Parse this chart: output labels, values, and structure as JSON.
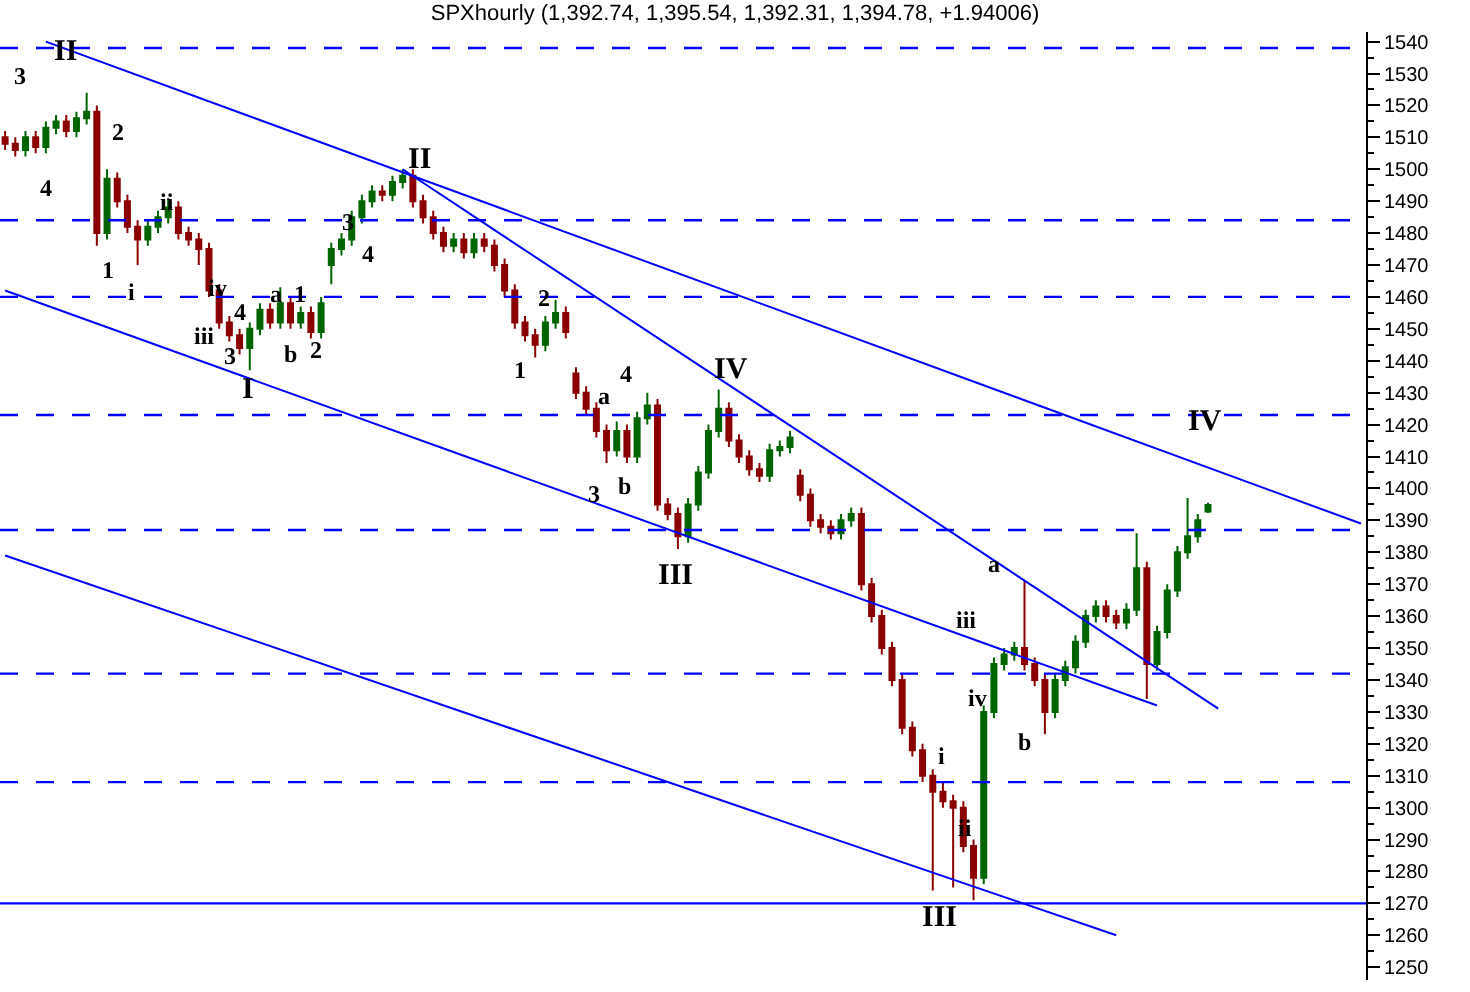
{
  "chart_data": {
    "type": "candlestick",
    "title": "SPXhourly (1,392.74, 1,395.54, 1,392.31, 1,394.78, +1.94006)",
    "categories": [
      null,
      null,
      null,
      null,
      null,
      null,
      null,
      null,
      null,
      null,
      null,
      null,
      null,
      null,
      null,
      null,
      null,
      null,
      null,
      null,
      null,
      null,
      null,
      null,
      null,
      null,
      null,
      null,
      null,
      null,
      null,
      null,
      null,
      null,
      null,
      null,
      null,
      null,
      null,
      null,
      null,
      null,
      null,
      null,
      null,
      null,
      null,
      null,
      null,
      null,
      null,
      null,
      null,
      null,
      null,
      null,
      null,
      null,
      null,
      null,
      null,
      null,
      null,
      null,
      null,
      null,
      null,
      null,
      null,
      null,
      null,
      null,
      null,
      null,
      null,
      null,
      null,
      null,
      null,
      null,
      null,
      null,
      null,
      null,
      null,
      null,
      null,
      null,
      null,
      null,
      null,
      null,
      null,
      null,
      null,
      null,
      null,
      null,
      null,
      null,
      null,
      null,
      null,
      null,
      null,
      null,
      null,
      null,
      null,
      null,
      null,
      null,
      null,
      null,
      null,
      null,
      null,
      null,
      null,
      null,
      null,
      null,
      null,
      null,
      null,
      null,
      null,
      null,
      null,
      null,
      null,
      null,
      null,
      null
    ],
    "ohlc": [
      [
        1510,
        1512,
        1506,
        1508
      ],
      [
        1508,
        1510,
        1504,
        1506
      ],
      [
        1506,
        1512,
        1504,
        1510
      ],
      [
        1510,
        1512,
        1505,
        1507
      ],
      [
        1507,
        1515,
        1505,
        1513
      ],
      [
        1513,
        1517,
        1511,
        1515
      ],
      [
        1515,
        1517,
        1510,
        1512
      ],
      [
        1512,
        1518,
        1510,
        1516
      ],
      [
        1516,
        1524,
        1514,
        1518
      ],
      [
        1518,
        1520,
        1476,
        1480
      ],
      [
        1480,
        1500,
        1478,
        1497
      ],
      [
        1497,
        1499,
        1488,
        1490
      ],
      [
        1490,
        1492,
        1480,
        1482
      ],
      [
        1482,
        1484,
        1470,
        1478
      ],
      [
        1478,
        1484,
        1476,
        1482
      ],
      [
        1482,
        1487,
        1480,
        1485
      ],
      [
        1485,
        1491,
        1483,
        1488
      ],
      [
        1488,
        1490,
        1478,
        1480
      ],
      [
        1480,
        1482,
        1476,
        1478
      ],
      [
        1478,
        1480,
        1470,
        1475
      ],
      [
        1475,
        1477,
        1460,
        1462
      ],
      [
        1462,
        1464,
        1450,
        1452
      ],
      [
        1452,
        1454,
        1446,
        1448
      ],
      [
        1448,
        1450,
        1442,
        1444
      ],
      [
        1444,
        1452,
        1437,
        1450
      ],
      [
        1450,
        1458,
        1448,
        1456
      ],
      [
        1456,
        1458,
        1450,
        1452
      ],
      [
        1452,
        1463,
        1450,
        1458
      ],
      [
        1458,
        1460,
        1450,
        1452
      ],
      [
        1452,
        1457,
        1450,
        1455
      ],
      [
        1455,
        1457,
        1447,
        1449
      ],
      [
        1449,
        1460,
        1447,
        1458
      ],
      [
        1470,
        1477,
        1464,
        1475
      ],
      [
        1475,
        1480,
        1473,
        1478
      ],
      [
        1478,
        1487,
        1476,
        1485
      ],
      [
        1485,
        1492,
        1483,
        1490
      ],
      [
        1490,
        1495,
        1488,
        1493
      ],
      [
        1493,
        1495,
        1490,
        1492
      ],
      [
        1492,
        1498,
        1490,
        1496
      ],
      [
        1496,
        1500,
        1494,
        1498
      ],
      [
        1498,
        1500,
        1488,
        1490
      ],
      [
        1490,
        1492,
        1483,
        1485
      ],
      [
        1485,
        1487,
        1478,
        1480
      ],
      [
        1480,
        1482,
        1474,
        1476
      ],
      [
        1476,
        1480,
        1474,
        1478
      ],
      [
        1478,
        1480,
        1472,
        1474
      ],
      [
        1474,
        1480,
        1472,
        1478
      ],
      [
        1478,
        1480,
        1474,
        1476
      ],
      [
        1476,
        1478,
        1468,
        1470
      ],
      [
        1470,
        1472,
        1460,
        1462
      ],
      [
        1462,
        1464,
        1450,
        1452
      ],
      [
        1452,
        1454,
        1446,
        1448
      ],
      [
        1448,
        1450,
        1441,
        1445
      ],
      [
        1445,
        1454,
        1443,
        1452
      ],
      [
        1452,
        1459,
        1450,
        1455
      ],
      [
        1455,
        1457,
        1447,
        1449
      ],
      [
        1436,
        1438,
        1428,
        1430
      ],
      [
        1430,
        1432,
        1423,
        1425
      ],
      [
        1425,
        1427,
        1416,
        1418
      ],
      [
        1418,
        1420,
        1408,
        1412
      ],
      [
        1412,
        1421,
        1410,
        1418
      ],
      [
        1418,
        1420,
        1408,
        1410
      ],
      [
        1410,
        1424,
        1408,
        1422
      ],
      [
        1422,
        1430,
        1420,
        1426
      ],
      [
        1426,
        1428,
        1393,
        1395
      ],
      [
        1395,
        1397,
        1390,
        1392
      ],
      [
        1392,
        1394,
        1381,
        1385
      ],
      [
        1385,
        1397,
        1383,
        1395
      ],
      [
        1395,
        1407,
        1393,
        1405
      ],
      [
        1405,
        1420,
        1403,
        1418
      ],
      [
        1418,
        1431,
        1416,
        1425
      ],
      [
        1425,
        1427,
        1413,
        1415
      ],
      [
        1415,
        1417,
        1408,
        1410
      ],
      [
        1410,
        1412,
        1404,
        1406
      ],
      [
        1406,
        1408,
        1402,
        1404
      ],
      [
        1404,
        1414,
        1402,
        1412
      ],
      [
        1412,
        1415,
        1410,
        1413
      ],
      [
        1413,
        1418,
        1411,
        1416
      ],
      [
        1404,
        1406,
        1396,
        1398
      ],
      [
        1398,
        1400,
        1388,
        1390
      ],
      [
        1390,
        1392,
        1386,
        1388
      ],
      [
        1388,
        1390,
        1384,
        1386
      ],
      [
        1386,
        1392,
        1384,
        1390
      ],
      [
        1390,
        1394,
        1388,
        1392
      ],
      [
        1392,
        1394,
        1368,
        1370
      ],
      [
        1370,
        1372,
        1358,
        1360
      ],
      [
        1360,
        1362,
        1348,
        1350
      ],
      [
        1350,
        1352,
        1338,
        1340
      ],
      [
        1340,
        1342,
        1323,
        1325
      ],
      [
        1325,
        1327,
        1316,
        1318
      ],
      [
        1318,
        1320,
        1308,
        1310
      ],
      [
        1310,
        1312,
        1274,
        1305
      ],
      [
        1305,
        1308,
        1300,
        1302
      ],
      [
        1302,
        1304,
        1275,
        1300
      ],
      [
        1300,
        1302,
        1286,
        1288
      ],
      [
        1288,
        1290,
        1271,
        1278
      ],
      [
        1278,
        1332,
        1276,
        1330
      ],
      [
        1330,
        1347,
        1328,
        1345
      ],
      [
        1345,
        1350,
        1343,
        1348
      ],
      [
        1348,
        1352,
        1346,
        1350
      ],
      [
        1350,
        1371,
        1343,
        1345
      ],
      [
        1345,
        1347,
        1338,
        1340
      ],
      [
        1340,
        1342,
        1323,
        1330
      ],
      [
        1330,
        1342,
        1328,
        1340
      ],
      [
        1340,
        1346,
        1338,
        1344
      ],
      [
        1344,
        1354,
        1342,
        1352
      ],
      [
        1352,
        1362,
        1350,
        1360
      ],
      [
        1360,
        1365,
        1358,
        1363
      ],
      [
        1363,
        1365,
        1358,
        1360
      ],
      [
        1360,
        1362,
        1356,
        1358
      ],
      [
        1358,
        1364,
        1356,
        1362
      ],
      [
        1362,
        1386,
        1360,
        1375
      ],
      [
        1375,
        1377,
        1334,
        1345
      ],
      [
        1345,
        1357,
        1343,
        1355
      ],
      [
        1355,
        1370,
        1353,
        1368
      ],
      [
        1368,
        1382,
        1366,
        1380
      ],
      [
        1380,
        1397,
        1378,
        1385
      ],
      [
        1385,
        1392,
        1383,
        1390
      ],
      [
        1392.74,
        1395.54,
        1392.31,
        1394.78
      ],
      null,
      null,
      null,
      null,
      null,
      null,
      null,
      null,
      null,
      null,
      null,
      null,
      null,
      null,
      null
    ],
    "colors": [
      "#8b0000",
      "#8b0000",
      "#006400",
      "#8b0000",
      "#006400",
      "#006400",
      "#8b0000",
      "#006400",
      "#006400",
      "#8b0000",
      "#006400",
      "#8b0000",
      "#8b0000",
      "#8b0000",
      "#006400",
      "#006400",
      "#006400",
      "#8b0000",
      "#8b0000",
      "#8b0000",
      "#8b0000",
      "#8b0000",
      "#8b0000",
      "#8b0000",
      "#006400",
      "#006400",
      "#8b0000",
      "#006400",
      "#8b0000",
      "#006400",
      "#8b0000",
      "#006400",
      "#006400",
      "#006400",
      "#006400",
      "#006400",
      "#006400",
      "#8b0000",
      "#006400",
      "#006400",
      "#8b0000",
      "#8b0000",
      "#8b0000",
      "#8b0000",
      "#006400",
      "#8b0000",
      "#006400",
      "#8b0000",
      "#8b0000",
      "#8b0000",
      "#8b0000",
      "#8b0000",
      "#8b0000",
      "#006400",
      "#006400",
      "#8b0000",
      "#8b0000",
      "#8b0000",
      "#8b0000",
      "#8b0000",
      "#006400",
      "#8b0000",
      "#006400",
      "#006400",
      "#8b0000",
      "#8b0000",
      "#8b0000",
      "#006400",
      "#006400",
      "#006400",
      "#006400",
      "#8b0000",
      "#8b0000",
      "#8b0000",
      "#8b0000",
      "#006400",
      "#006400",
      "#006400",
      "#8b0000",
      "#8b0000",
      "#8b0000",
      "#8b0000",
      "#006400",
      "#006400",
      "#8b0000",
      "#8b0000",
      "#8b0000",
      "#8b0000",
      "#8b0000",
      "#8b0000",
      "#8b0000",
      "#8b0000",
      "#8b0000",
      "#8b0000",
      "#8b0000",
      "#8b0000",
      "#006400",
      "#006400",
      "#006400",
      "#006400",
      "#8b0000",
      "#8b0000",
      "#8b0000",
      "#006400",
      "#006400",
      "#006400",
      "#006400",
      "#006400",
      "#8b0000",
      "#8b0000",
      "#006400",
      "#006400",
      "#8b0000",
      "#006400",
      "#006400",
      "#006400",
      "#006400",
      "#006400",
      "#006400",
      null,
      null,
      null,
      null,
      null,
      null,
      null,
      null,
      null,
      null,
      null,
      null,
      null,
      null,
      null
    ],
    "series": [
      {
        "type": "line",
        "color": "#0000ff",
        "values": [
          null,
          null,
          null,
          null,
          1540,
          null,
          null,
          null,
          null,
          null,
          null,
          null,
          null,
          null,
          null,
          null,
          null,
          null,
          null,
          null,
          null,
          null,
          null,
          null,
          null,
          null,
          null,
          null,
          null,
          null,
          null,
          null,
          null,
          null,
          null,
          null,
          null,
          null,
          null,
          null,
          null,
          null,
          null,
          null,
          null,
          null,
          null,
          null,
          null,
          null,
          null,
          null,
          null,
          null,
          null,
          null,
          null,
          null,
          null,
          null,
          null,
          null,
          null,
          null,
          null,
          null,
          null,
          null,
          null,
          null,
          null,
          null,
          null,
          null,
          null,
          null,
          null,
          null,
          null,
          null,
          null,
          null,
          null,
          null,
          null,
          null,
          null,
          null,
          null,
          null,
          null,
          null,
          null,
          null,
          null,
          null,
          null,
          null,
          null,
          null,
          null,
          null,
          null,
          null,
          null,
          null,
          null,
          null,
          null,
          null,
          null,
          null,
          null,
          null,
          null,
          null,
          null,
          null,
          null,
          null,
          null,
          null,
          null,
          null,
          null,
          null,
          null,
          null,
          null,
          null,
          null,
          null,
          null,
          1389
        ]
      },
      {
        "type": "line",
        "color": "#0000ff",
        "values": [
          null,
          null,
          null,
          null,
          null,
          null,
          null,
          null,
          null,
          null,
          null,
          null,
          null,
          null,
          null,
          null,
          null,
          null,
          null,
          null,
          null,
          null,
          null,
          null,
          null,
          null,
          null,
          null,
          null,
          null,
          null,
          null,
          null,
          null,
          null,
          null,
          null,
          null,
          null,
          1500,
          null,
          null,
          null,
          null,
          null,
          null,
          null,
          null,
          null,
          null,
          null,
          null,
          null,
          null,
          null,
          null,
          null,
          null,
          null,
          null,
          null,
          null,
          null,
          null,
          null,
          null,
          null,
          null,
          null,
          null,
          null,
          null,
          null,
          null,
          null,
          null,
          null,
          null,
          null,
          null,
          null,
          null,
          null,
          null,
          null,
          null,
          null,
          null,
          null,
          null,
          null,
          null,
          null,
          null,
          null,
          null,
          null,
          null,
          null,
          null,
          null,
          null,
          null,
          null,
          null,
          null,
          null,
          null,
          null,
          null,
          null,
          null,
          null,
          null,
          null,
          null,
          null,
          null,
          null,
          1331,
          null,
          null,
          null,
          null,
          null,
          null,
          null,
          null,
          null,
          null,
          null,
          null,
          null,
          null
        ]
      },
      {
        "type": "line",
        "color": "#0000ff",
        "values": [
          1462,
          null,
          null,
          null,
          null,
          null,
          null,
          null,
          null,
          null,
          null,
          null,
          null,
          null,
          null,
          null,
          null,
          null,
          null,
          null,
          null,
          null,
          null,
          null,
          null,
          null,
          null,
          null,
          null,
          null,
          null,
          null,
          null,
          null,
          null,
          null,
          null,
          null,
          null,
          null,
          null,
          null,
          null,
          null,
          null,
          null,
          null,
          null,
          null,
          null,
          null,
          null,
          null,
          null,
          null,
          null,
          null,
          null,
          null,
          null,
          null,
          null,
          null,
          null,
          null,
          null,
          null,
          null,
          null,
          null,
          null,
          null,
          null,
          null,
          null,
          null,
          null,
          null,
          null,
          null,
          null,
          null,
          null,
          null,
          null,
          null,
          null,
          null,
          null,
          null,
          null,
          null,
          null,
          null,
          null,
          null,
          null,
          null,
          null,
          null,
          null,
          null,
          null,
          null,
          null,
          null,
          null,
          null,
          null,
          null,
          null,
          null,
          null,
          1332,
          null,
          null,
          null,
          null,
          null,
          null,
          null,
          null,
          null,
          null,
          null,
          null,
          null,
          null,
          null,
          null,
          null,
          null,
          null,
          null
        ]
      },
      {
        "type": "line",
        "color": "#0000ff",
        "values": [
          1379,
          null,
          null,
          null,
          null,
          null,
          null,
          null,
          null,
          null,
          null,
          null,
          null,
          null,
          null,
          null,
          null,
          null,
          null,
          null,
          null,
          null,
          null,
          null,
          null,
          null,
          null,
          null,
          null,
          null,
          null,
          null,
          null,
          null,
          null,
          null,
          null,
          null,
          null,
          null,
          null,
          null,
          null,
          null,
          null,
          null,
          null,
          null,
          null,
          null,
          null,
          null,
          null,
          null,
          null,
          null,
          null,
          null,
          null,
          null,
          null,
          null,
          null,
          null,
          null,
          null,
          null,
          null,
          null,
          null,
          null,
          null,
          null,
          null,
          null,
          null,
          null,
          null,
          null,
          null,
          null,
          null,
          null,
          null,
          null,
          null,
          null,
          null,
          null,
          null,
          null,
          null,
          null,
          null,
          null,
          null,
          null,
          null,
          null,
          null,
          null,
          null,
          null,
          null,
          null,
          null,
          null,
          null,
          null,
          1260,
          null,
          null,
          null,
          null,
          null,
          null,
          null,
          null,
          null,
          null,
          null,
          null,
          null,
          null,
          null,
          null,
          null,
          null,
          null,
          null,
          null,
          null,
          null,
          null
        ]
      }
    ],
    "ref_lines": [
      {
        "axis": "y",
        "value": 1538,
        "color": "#0000ff",
        "line_style": "dashed"
      },
      {
        "axis": "y",
        "value": 1484,
        "color": "#0000ff",
        "line_style": "dashed"
      },
      {
        "axis": "y",
        "value": 1460,
        "color": "#0000ff",
        "line_style": "dashed"
      },
      {
        "axis": "y",
        "value": 1423,
        "color": "#0000ff",
        "line_style": "dashed"
      },
      {
        "axis": "y",
        "value": 1387,
        "color": "#0000ff",
        "line_style": "dashed"
      },
      {
        "axis": "y",
        "value": 1342,
        "color": "#0000ff",
        "line_style": "dashed"
      },
      {
        "axis": "y",
        "value": 1308,
        "color": "#0000ff",
        "line_style": "dashed"
      },
      {
        "axis": "y",
        "value": 1270,
        "color": "#0000ff",
        "line_style": "solid"
      }
    ],
    "annotations": [
      "II",
      "III",
      "IV",
      "II",
      "I",
      "III",
      "IV",
      "3",
      "4",
      "2",
      "1",
      "i",
      "ii",
      "iv",
      "iii",
      "4",
      "3",
      "a",
      "1",
      "b",
      "2",
      "3",
      "4",
      "1",
      "2",
      "a",
      "4",
      "3",
      "b",
      "iii",
      "iv",
      "i",
      "ii",
      "a",
      "b"
    ],
    "ylim": [
      1246,
      1543
    ],
    "yticks": [
      1250,
      {
        "value": 1255,
        "label": null
      },
      1260,
      {
        "value": 1265,
        "label": null
      },
      1270,
      {
        "value": 1275,
        "label": null
      },
      1280,
      {
        "value": 1285,
        "label": null
      },
      1290,
      {
        "value": 1295,
        "label": null
      },
      1300,
      {
        "value": 1305,
        "label": null
      },
      1310,
      {
        "value": 1315,
        "label": null
      },
      1320,
      {
        "value": 1325,
        "label": null
      },
      1330,
      {
        "value": 1335,
        "label": null
      },
      1340,
      {
        "value": 1345,
        "label": null
      },
      1350,
      {
        "value": 1355,
        "label": null
      },
      1360,
      {
        "value": 1365,
        "label": null
      },
      1370,
      {
        "value": 1375,
        "label": null
      },
      1380,
      {
        "value": 1385,
        "label": null
      },
      1390,
      {
        "value": 1395,
        "label": null
      },
      1400,
      {
        "value": 1405,
        "label": null
      },
      1410,
      {
        "value": 1415,
        "label": null
      },
      1420,
      {
        "value": 1425,
        "label": null
      },
      1430,
      {
        "value": 1435,
        "label": null
      },
      1440,
      {
        "value": 1445,
        "label": null
      },
      1450,
      {
        "value": 1455,
        "label": null
      },
      1460,
      {
        "value": 1465,
        "label": null
      },
      1470,
      {
        "value": 1475,
        "label": null
      },
      1480,
      {
        "value": 1485,
        "label": null
      },
      1490,
      {
        "value": 1495,
        "label": null
      },
      1500,
      {
        "value": 1505,
        "label": null
      },
      1510,
      {
        "value": 1515,
        "label": null
      },
      1520,
      {
        "value": 1525,
        "label": null
      },
      1530,
      {
        "value": 1535,
        "label": null
      },
      1540
    ],
    "tick_labels": "y"
  }
}
